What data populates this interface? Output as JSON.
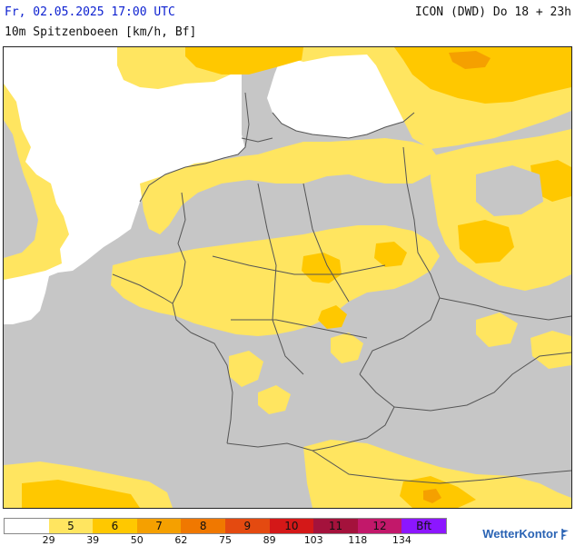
{
  "header": {
    "datetime": "Fr, 02.05.2025 17:00 UTC",
    "model_run": "ICON (DWD) Do 18 + 23h",
    "parameter": "10m Spitzenboeen [km/h, Bf]"
  },
  "legend": {
    "classes": [
      {
        "label": "",
        "color": "#ffffff"
      },
      {
        "label": "5",
        "color": "#ffe560"
      },
      {
        "label": "6",
        "color": "#ffc800"
      },
      {
        "label": "7",
        "color": "#f5a000"
      },
      {
        "label": "8",
        "color": "#f07800"
      },
      {
        "label": "9",
        "color": "#e44a10"
      },
      {
        "label": "10",
        "color": "#d41818"
      },
      {
        "label": "11",
        "color": "#a4123c"
      },
      {
        "label": "12",
        "color": "#c2186a"
      },
      {
        "label": "Bft",
        "color": "#8c16ff"
      }
    ],
    "tick_values": [
      "29",
      "39",
      "50",
      "62",
      "75",
      "89",
      "103",
      "118",
      "134"
    ]
  },
  "map_colors": {
    "land": "#c6c6c6",
    "water": "#ffffff",
    "border": "#555555"
  },
  "brand": {
    "name": "WetterKontor",
    "icon": "wind-flag-icon"
  }
}
